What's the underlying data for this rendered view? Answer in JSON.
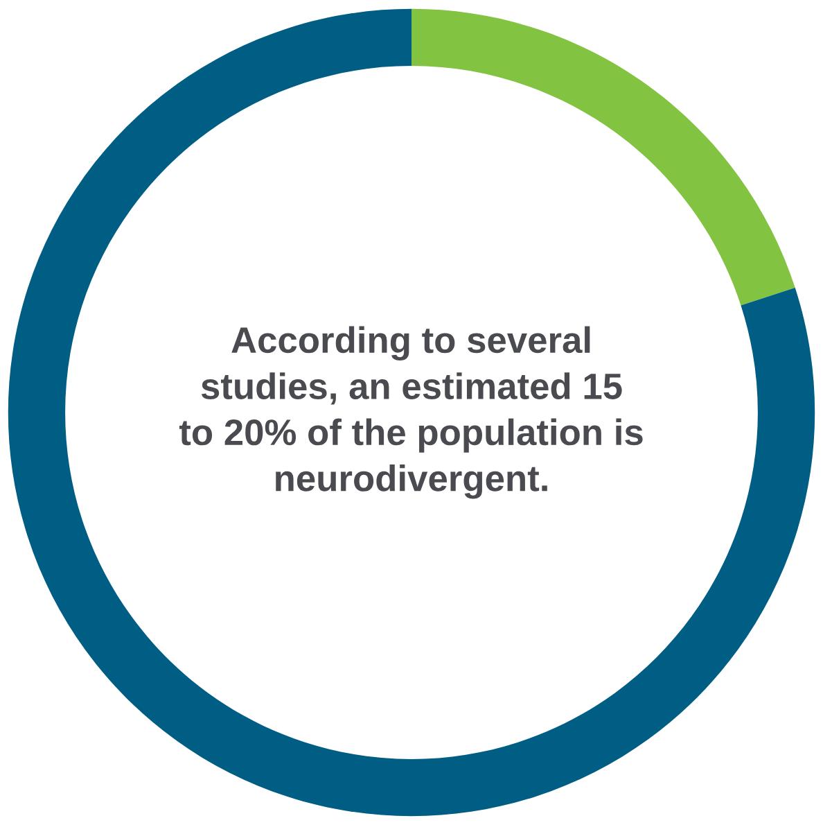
{
  "chart_data": {
    "type": "donut",
    "categories": [
      null,
      null
    ],
    "values": [
      20,
      80
    ],
    "colors": [
      "#82c341",
      "#005e85"
    ],
    "annotations": [
      "According to several\nstudies, an estimated 15\nto 20% of the population is\nneurodivergent."
    ],
    "legend": false
  }
}
